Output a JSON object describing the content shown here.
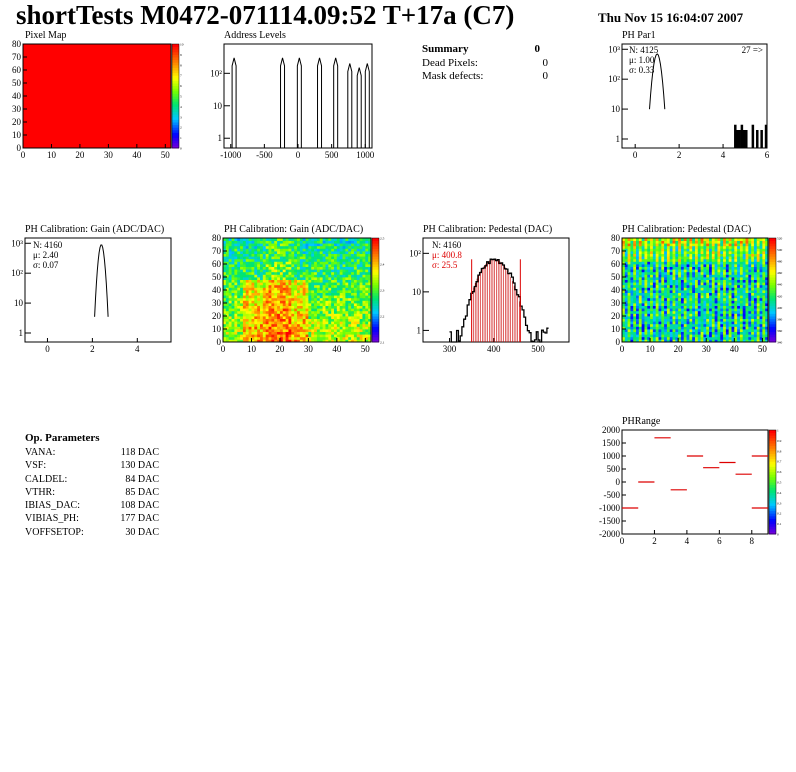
{
  "header": {
    "title": "shortTests M0472-071114.09:52 T+17a (C7)",
    "date": "Thu Nov 15 16:04:07 2007"
  },
  "summary": {
    "heading": "Summary",
    "heading_value": "0",
    "rows": [
      {
        "label": "Dead Pixels:",
        "value": "0"
      },
      {
        "label": "Mask defects:",
        "value": "0"
      }
    ]
  },
  "op_params": {
    "heading": "Op. Parameters",
    "rows": [
      {
        "label": "VANA:",
        "value": "118 DAC"
      },
      {
        "label": "VSF:",
        "value": "130 DAC"
      },
      {
        "label": "CALDEL:",
        "value": "84 DAC"
      },
      {
        "label": "VTHR:",
        "value": "85 DAC"
      },
      {
        "label": "IBIAS_DAC:",
        "value": "108 DAC"
      },
      {
        "label": "VIBIAS_PH:",
        "value": "177 DAC"
      },
      {
        "label": "VOFFSETOP:",
        "value": "30 DAC"
      }
    ]
  },
  "colors": {
    "frame": "#000000",
    "red_marker": "#dd0000",
    "pixel_map_fill": "#ff0000"
  },
  "chart_data": [
    {
      "id": "pixel-map",
      "type": "heatmap",
      "title": "Pixel Map",
      "xlim": [
        0,
        52
      ],
      "ylim": [
        0,
        80
      ],
      "x_ticks": [
        "0",
        "10",
        "20",
        "30",
        "40",
        "50"
      ],
      "y_ticks": [
        "0",
        "10",
        "20",
        "30",
        "40",
        "50",
        "60",
        "70",
        "80"
      ],
      "z_ticks": [
        "0",
        "1",
        "2",
        "3",
        "4",
        "5",
        "6",
        "7",
        "8",
        "9",
        "10"
      ],
      "zlim": [
        0,
        10
      ],
      "uniform_value": 10
    },
    {
      "id": "address-levels",
      "type": "bar",
      "title": "Address Levels",
      "log_y": true,
      "xlim": [
        -1100,
        1100
      ],
      "x_ticks": [
        "-1000",
        "-500",
        "0",
        "500",
        "1000"
      ],
      "y_ticks": [
        "1",
        "10",
        "10²"
      ],
      "peaks": [
        {
          "x": -950,
          "y": 300
        },
        {
          "x": -230,
          "y": 300
        },
        {
          "x": 20,
          "y": 300
        },
        {
          "x": 320,
          "y": 300
        },
        {
          "x": 560,
          "y": 300
        },
        {
          "x": 770,
          "y": 200
        },
        {
          "x": 910,
          "y": 150
        },
        {
          "x": 1030,
          "y": 200
        }
      ]
    },
    {
      "id": "ph-par1",
      "type": "bar",
      "title": "PH Par1",
      "log_y": true,
      "xlim": [
        -0.6,
        6
      ],
      "x_ticks": [
        "0",
        "2",
        "4",
        "6"
      ],
      "y_ticks": [
        "1",
        "10",
        "10²",
        "10³"
      ],
      "stats": {
        "n": "N: 4125",
        "mean": "μ: 1.00",
        "sigma": "σ: 0.33"
      },
      "overflow_label": "27 =>",
      "peak": {
        "center": 1.0,
        "height": 700
      },
      "outliers": [
        4.5,
        4.6,
        4.7,
        4.8,
        4.9,
        5.0,
        5.3,
        5.5,
        5.7,
        5.9
      ]
    },
    {
      "id": "ph-gain-hist",
      "type": "bar",
      "title": "PH Calibration: Gain (ADC/DAC)",
      "log_y": true,
      "xlim": [
        -1,
        5.5
      ],
      "x_ticks": [
        "0",
        "2",
        "4"
      ],
      "y_ticks": [
        "1",
        "10",
        "10²",
        "10³"
      ],
      "stats": {
        "n": "N: 4160",
        "mean": "μ: 2.40",
        "sigma": "σ: 0.07"
      },
      "peak": {
        "center": 2.4,
        "height": 900
      }
    },
    {
      "id": "ph-gain-map",
      "type": "heatmap",
      "title": "PH Calibration: Gain (ADC/DAC)",
      "xlim": [
        0,
        52
      ],
      "ylim": [
        0,
        80
      ],
      "x_ticks": [
        "0",
        "10",
        "20",
        "30",
        "40",
        "50"
      ],
      "y_ticks": [
        "0",
        "10",
        "20",
        "30",
        "40",
        "50",
        "60",
        "70",
        "80"
      ],
      "z_ticks": [
        "2.1",
        "2.2",
        "2.3",
        "2.4",
        "2.5"
      ],
      "zlim": [
        2.05,
        2.6
      ]
    },
    {
      "id": "ph-pedestal-hist",
      "type": "bar",
      "title": "PH Calibration: Pedestal (DAC)",
      "log_y": true,
      "xlim": [
        240,
        570
      ],
      "x_ticks": [
        "300",
        "400",
        "500"
      ],
      "y_ticks": [
        "1",
        "10",
        "10²"
      ],
      "stats": {
        "n": "N: 4160",
        "mean": "μ: 400.8",
        "sigma": "σ: 25.5"
      },
      "peak": {
        "center": 400.8,
        "sigma": 25.5,
        "height": 70
      },
      "markers": [
        350,
        460
      ]
    },
    {
      "id": "ph-pedestal-map",
      "type": "heatmap",
      "title": "PH Calibration: Pedestal (DAC)",
      "xlim": [
        0,
        52
      ],
      "ylim": [
        0,
        80
      ],
      "x_ticks": [
        "0",
        "10",
        "20",
        "30",
        "40",
        "50"
      ],
      "y_ticks": [
        "0",
        "10",
        "20",
        "30",
        "40",
        "50",
        "60",
        "70",
        "80"
      ],
      "z_ticks": [
        "340",
        "360",
        "380",
        "400",
        "420",
        "440",
        "460",
        "480",
        "500",
        "520"
      ],
      "zlim": [
        330,
        530
      ]
    },
    {
      "id": "ph-range",
      "type": "scatter",
      "title": "PHRange",
      "xlim": [
        0,
        9
      ],
      "ylim": [
        -2000,
        2000
      ],
      "x_ticks": [
        "0",
        "2",
        "4",
        "6",
        "8"
      ],
      "y_ticks": [
        "-2000",
        "-1500",
        "-1000",
        "-500",
        "0",
        "500",
        "1000",
        "1500",
        "2000"
      ],
      "z_ticks": [
        "0",
        "0.1",
        "0.2",
        "0.3",
        "0.4",
        "0.5",
        "0.6",
        "0.7",
        "0.8",
        "0.9",
        "1"
      ],
      "points": [
        {
          "x": 0.5,
          "y": -1000
        },
        {
          "x": 1.5,
          "y": 0
        },
        {
          "x": 2.5,
          "y": 1700
        },
        {
          "x": 3.5,
          "y": -300
        },
        {
          "x": 4.5,
          "y": 1000
        },
        {
          "x": 5.5,
          "y": 550
        },
        {
          "x": 6.5,
          "y": 750
        },
        {
          "x": 7.5,
          "y": 300
        },
        {
          "x": 8.5,
          "y": 1000
        },
        {
          "x": 8.5,
          "y": -1000
        }
      ]
    }
  ]
}
